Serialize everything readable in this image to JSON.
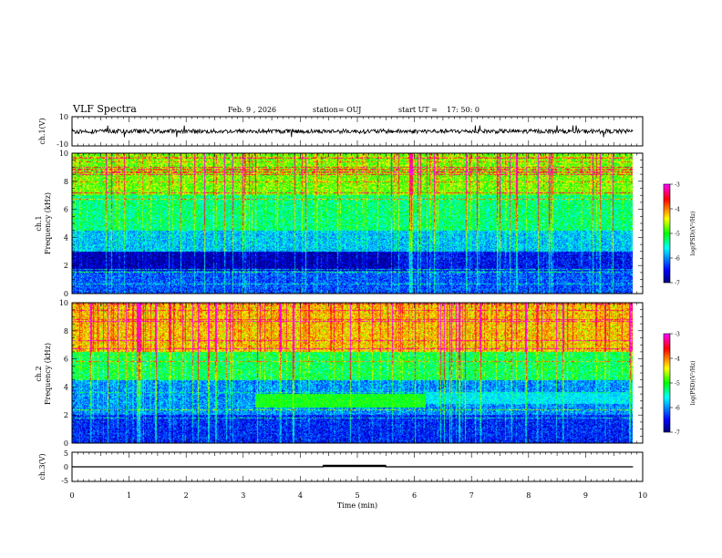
{
  "header": {
    "title": "VLF Spectra",
    "date": "Feb. 9  , 2026",
    "station": "station= OUJ",
    "start_label": "start  UT  =",
    "start_time": "17: 50: 0"
  },
  "colors": {
    "cmap": [
      "#00007f",
      "#0000ff",
      "#00ffff",
      "#00ff00",
      "#ffff00",
      "#ff0000",
      "#ff00ff"
    ]
  },
  "chart_data": [
    {
      "type": "line",
      "id": "ch1-waveform",
      "ylabel": "ch.1(V)",
      "ylim": [
        -10,
        10
      ],
      "yticks": [
        "10",
        "-10"
      ],
      "baseline": 0,
      "description_values": {
        "typical_amplitude": 1.5,
        "spike_amplitude": 4
      }
    },
    {
      "type": "heatmap",
      "id": "ch1-spectrogram",
      "ylabel": "ch.1\nFrequency  (kHz)",
      "ylim": [
        0,
        10
      ],
      "yticks": [
        "0",
        "2",
        "4",
        "6",
        "8",
        "10"
      ],
      "colorbar": {
        "label": "log(PSD)(V²/Hz)",
        "range": [
          -7,
          -3
        ],
        "ticks": [
          "-3",
          "-4",
          "-5",
          "-6",
          "-7"
        ]
      },
      "bands": [
        {
          "from": 0,
          "to": 1.6,
          "level": -6.3
        },
        {
          "from": 1.6,
          "to": 3.0,
          "level": -6.9
        },
        {
          "from": 3.0,
          "to": 4.5,
          "level": -5.9
        },
        {
          "from": 4.5,
          "to": 7.0,
          "level": -5.4
        },
        {
          "from": 7.0,
          "to": 10,
          "level": -4.9
        }
      ]
    },
    {
      "type": "heatmap",
      "id": "ch2-spectrogram",
      "ylabel": "ch.2\nFrequency  (kHz)",
      "ylim": [
        0,
        10
      ],
      "yticks": [
        "0",
        "2",
        "4",
        "6",
        "8",
        "10"
      ],
      "colorbar": {
        "label": "log(PSD)(V²/Hz)",
        "range": [
          -7,
          -3
        ],
        "ticks": [
          "-3",
          "-4",
          "-5",
          "-6",
          "-7"
        ]
      },
      "bands": [
        {
          "from": 0,
          "to": 2.0,
          "level": -6.5
        },
        {
          "from": 2.0,
          "to": 4.5,
          "level": -6.1
        },
        {
          "from": 4.5,
          "to": 6.5,
          "level": -5.3
        },
        {
          "from": 6.5,
          "to": 10,
          "level": -4.4
        }
      ],
      "enhanced_region": {
        "t_start": 3.2,
        "t_end": 6.2,
        "f_low": 2.5,
        "f_high": 3.5,
        "level": -5.0
      }
    },
    {
      "type": "line",
      "id": "ch3-waveform",
      "ylabel": "ch.3(V)",
      "ylim": [
        -5,
        5
      ],
      "yticks": [
        "5",
        "0",
        "-5"
      ],
      "values_x": [
        0,
        4.4,
        4.4,
        5.5,
        5.5,
        9.83
      ],
      "values_y": [
        0,
        0,
        0.3,
        0.3,
        0,
        0
      ]
    }
  ],
  "xaxis": {
    "label": "Time  (min)",
    "range": [
      0,
      10
    ],
    "ticks": [
      "0",
      "1",
      "2",
      "3",
      "4",
      "5",
      "6",
      "7",
      "8",
      "9",
      "10"
    ],
    "data_end": 9.83
  }
}
